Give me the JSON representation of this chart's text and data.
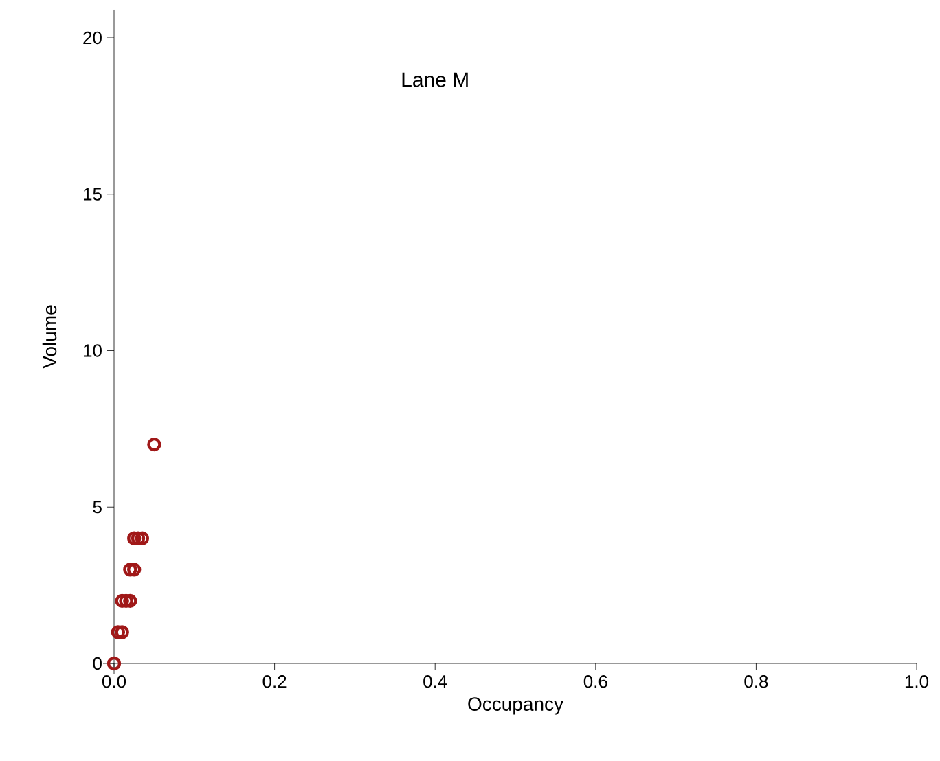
{
  "chart_data": {
    "type": "scatter",
    "title": "Lane M",
    "xlabel": "Occupancy",
    "ylabel": "Volume",
    "x": [
      0.0,
      0.005,
      0.01,
      0.01,
      0.015,
      0.02,
      0.02,
      0.025,
      0.025,
      0.03,
      0.035,
      0.05
    ],
    "series": [
      {
        "color": "#a01818",
        "values": [
          0,
          1,
          1,
          2,
          2,
          2,
          3,
          3,
          4,
          4,
          4,
          7
        ]
      }
    ],
    "marker": "circle",
    "grid": false,
    "xlim": [
      0,
      1
    ],
    "ylim": [
      0,
      20.9
    ],
    "xticks": [
      {
        "value": 0,
        "label": "0.0"
      },
      0.2,
      0.4,
      0.6,
      0.8,
      {
        "value": 1,
        "label": "1.0"
      }
    ],
    "yticks": [
      0,
      5,
      10,
      15,
      20
    ]
  }
}
